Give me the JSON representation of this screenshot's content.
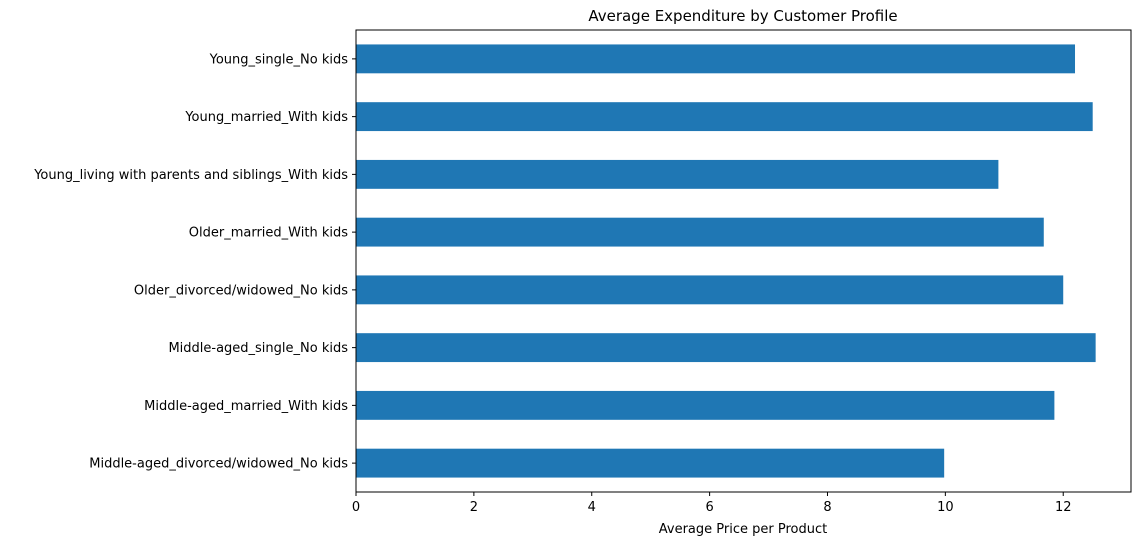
{
  "chart_data": {
    "type": "bar",
    "orientation": "horizontal",
    "title": "Average Expenditure by Customer Profile",
    "xlabel": "Average Price per Product",
    "ylabel": "",
    "xlim": [
      0,
      13.15
    ],
    "xticks": [
      0,
      2,
      4,
      6,
      8,
      10,
      12
    ],
    "grid": false,
    "bar_color": "#1f77b4",
    "categories": [
      "Young_single_No kids",
      "Young_married_With kids",
      "Young_living with parents and siblings_With kids",
      "Older_married_With kids",
      "Older_divorced/widowed_No kids",
      "Middle-aged_single_No kids",
      "Middle-aged_married_With kids",
      "Middle-aged_divorced/widowed_No kids"
    ],
    "values": [
      12.2,
      12.5,
      10.9,
      11.67,
      12.0,
      12.55,
      11.85,
      9.98
    ]
  }
}
